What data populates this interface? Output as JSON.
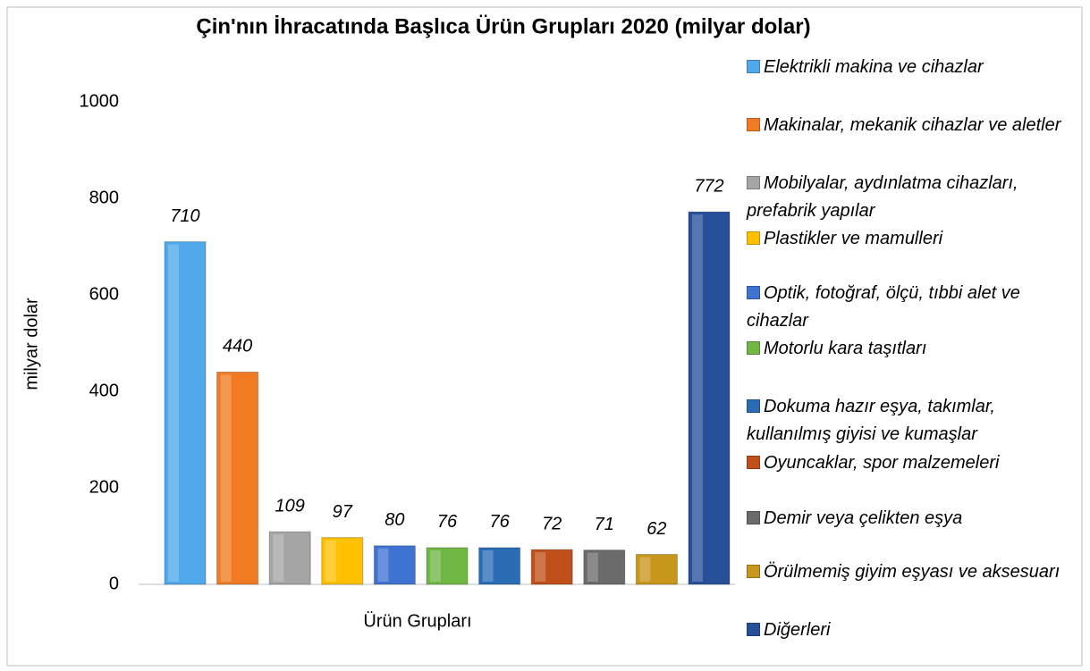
{
  "chart_data": {
    "type": "bar",
    "title": "Çin'nın İhracatında Başlıca Ürün Grupları 2020 (milyar dolar)",
    "categories": [
      "Ürün Grupları"
    ],
    "y_label": "milyar dolar",
    "ylim": [
      0,
      1000
    ],
    "yticks": [
      0,
      200,
      400,
      600,
      800,
      1000
    ],
    "grid": false,
    "legend": "right",
    "series": [
      {
        "name": "Elektrikli makina ve cihazlar",
        "color": "#4fa9ea",
        "values": [
          710
        ]
      },
      {
        "name": "Makinalar, mekanik cihazlar ve aletler",
        "color": "#f07b22",
        "values": [
          440
        ]
      },
      {
        "name": "Mobilyalar, aydınlatma cihazları, prefabrik yapılar",
        "color": "#a5a5a5",
        "values": [
          109
        ]
      },
      {
        "name": "Plastikler ve mamulleri",
        "color": "#ffc000",
        "values": [
          97
        ]
      },
      {
        "name": "Optik, fotoğraf, ölçü, tıbbi alet ve cihazlar",
        "color": "#3f73d2",
        "values": [
          80
        ]
      },
      {
        "name": "Motorlu kara taşıtları",
        "color": "#70b744",
        "values": [
          76
        ]
      },
      {
        "name": "Dokuma hazır eşya, takımlar, kullanılmış giyisi ve kumaşlar",
        "color": "#2a6db5",
        "values": [
          76
        ]
      },
      {
        "name": "Oyuncaklar, spor malzemeleri",
        "color": "#c0501a",
        "values": [
          72
        ]
      },
      {
        "name": "Demir veya çelikten eşya",
        "color": "#6b6b6b",
        "values": [
          71
        ]
      },
      {
        "name": "Örülmemiş giyim eşyası ve aksesuarı",
        "color": "#c7961a",
        "values": [
          62
        ]
      },
      {
        "name": "Diğerleri",
        "color": "#284f99",
        "values": [
          772
        ]
      }
    ]
  }
}
